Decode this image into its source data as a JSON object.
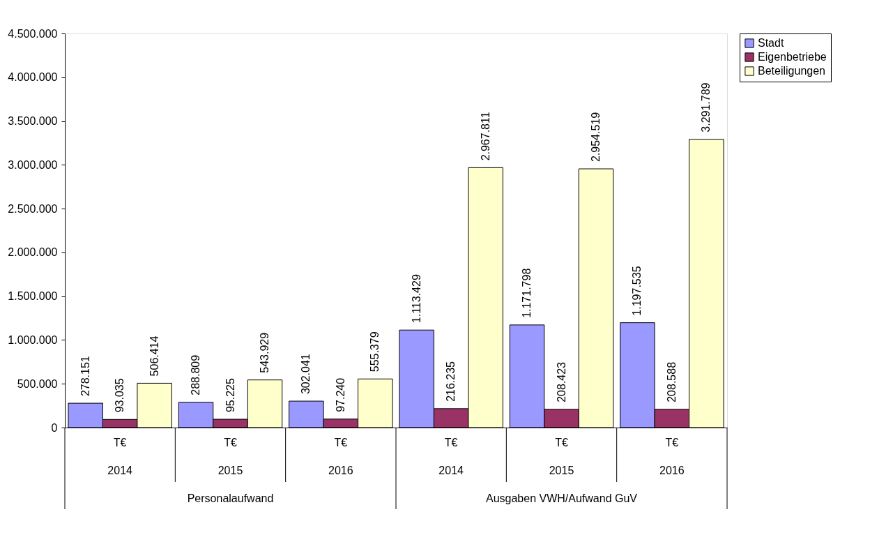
{
  "chart_data": {
    "type": "bar",
    "categories": [
      "2014",
      "2015",
      "2016",
      "2014",
      "2015",
      "2016"
    ],
    "series": [
      {
        "name": "Stadt",
        "color": "#9999ff",
        "values": [
          278151,
          288809,
          302041,
          1113429,
          1171798,
          1197535
        ],
        "value_labels": [
          "278.151",
          "288.809",
          "302.041",
          "1.113.429",
          "1.171.798",
          "1.197.535"
        ]
      },
      {
        "name": "Eigenbetriebe",
        "color": "#993366",
        "values": [
          93035,
          95225,
          97240,
          216235,
          208423,
          208588
        ],
        "value_labels": [
          "93.035",
          "95.225",
          "97.240",
          "216.235",
          "208.423",
          "208.588"
        ]
      },
      {
        "name": "Beteiligungen",
        "color": "#ffffcc",
        "values": [
          506414,
          543929,
          555379,
          2967811,
          2954519,
          3291789
        ],
        "value_labels": [
          "506.414",
          "543.929",
          "555.379",
          "2.967.811",
          "2.954.519",
          "3.291.789"
        ]
      }
    ],
    "ylim": [
      0,
      4500000
    ],
    "yticks": [
      0,
      {
        "value": 500000,
        "label": "500.000"
      },
      {
        "value": 1000000,
        "label": "1.000.000"
      },
      {
        "value": 1500000,
        "label": "1.500.000"
      },
      {
        "value": 2000000,
        "label": "2.000.000"
      },
      {
        "value": 2500000,
        "label": "2.500.000"
      },
      {
        "value": 3000000,
        "label": "3.000.000"
      },
      {
        "value": 3500000,
        "label": "3.500.000"
      },
      {
        "value": 4000000,
        "label": "4.000.000"
      },
      {
        "value": 4500000,
        "label": "4.500.000"
      }
    ],
    "annotations": [
      "T€",
      "T€",
      "T€",
      "T€",
      "T€",
      "T€",
      "Personalaufwand",
      "Ausgaben VWH/Aufwand GuV"
    ],
    "grid": false,
    "legend": "right"
  }
}
